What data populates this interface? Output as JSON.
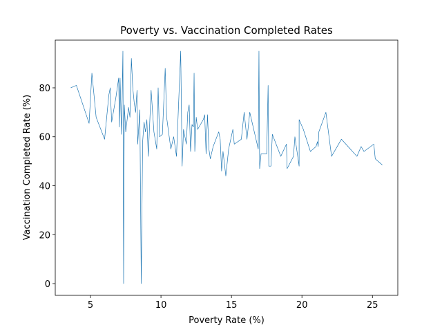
{
  "chart_data": {
    "type": "line",
    "title": "Poverty vs. Vaccination Completed Rates",
    "xlabel": "Poverty Rate (%)",
    "ylabel": "Vaccination Completed Rate (%)",
    "color": "#1f77b4",
    "x": [
      3.6,
      4.0,
      4.9,
      5.1,
      5.4,
      6.0,
      6.3,
      6.4,
      6.5,
      6.8,
      7.0,
      7.05,
      7.1,
      7.2,
      7.3,
      7.35,
      7.4,
      7.5,
      7.7,
      7.8,
      7.9,
      8.0,
      8.1,
      8.2,
      8.3,
      8.35,
      8.5,
      8.6,
      8.7,
      8.8,
      8.9,
      9.0,
      9.1,
      9.3,
      9.5,
      9.7,
      9.8,
      9.9,
      10.1,
      10.3,
      10.4,
      10.7,
      10.9,
      11.1,
      11.4,
      11.5,
      11.6,
      11.8,
      11.9,
      12.0,
      12.1,
      12.2,
      12.3,
      12.35,
      12.4,
      12.5,
      12.6,
      13.0,
      13.1,
      13.2,
      13.3,
      13.4,
      13.5,
      13.7,
      14.1,
      14.2,
      14.3,
      14.4,
      14.6,
      14.8,
      15.1,
      15.2,
      15.7,
      15.9,
      16.1,
      16.3,
      16.9,
      16.95,
      17.0,
      17.1,
      17.5,
      17.6,
      17.65,
      17.8,
      17.9,
      18.5,
      18.9,
      18.95,
      19.4,
      19.5,
      19.8,
      19.8,
      20.1,
      20.6,
      21.0,
      21.1,
      21.15,
      21.2,
      21.7,
      22.1,
      22.8,
      23.9,
      24.2,
      24.4,
      25.1,
      25.2,
      25.7
    ],
    "values": [
      80,
      81,
      65.5,
      86,
      68,
      59,
      77,
      80,
      66,
      76,
      84,
      64,
      84,
      61,
      95,
      0,
      73,
      62,
      72,
      68,
      92,
      80,
      74,
      70,
      79,
      57,
      71,
      0,
      58,
      66,
      62,
      67,
      52,
      79,
      62,
      55,
      80,
      60,
      61,
      88,
      68,
      55,
      60,
      52,
      95,
      48,
      63,
      57,
      70,
      73,
      54,
      65,
      64,
      86,
      54,
      68,
      63,
      67,
      69,
      53,
      69,
      55,
      51,
      56,
      62,
      59,
      46,
      54,
      44,
      55,
      63,
      57,
      59,
      70,
      59,
      70,
      55,
      95,
      47,
      53,
      53,
      81,
      48,
      48,
      61,
      52,
      57,
      47,
      52,
      60,
      48,
      67,
      63,
      54,
      56,
      58,
      56,
      62,
      70,
      52,
      59,
      52,
      56,
      54,
      57,
      51,
      48.5
    ],
    "xlim": [
      2.5,
      26.8
    ],
    "ylim": [
      -4.8,
      99.5
    ],
    "xticks": [
      5,
      10,
      15,
      20,
      25
    ],
    "yticks": [
      0,
      20,
      40,
      60,
      80
    ]
  }
}
